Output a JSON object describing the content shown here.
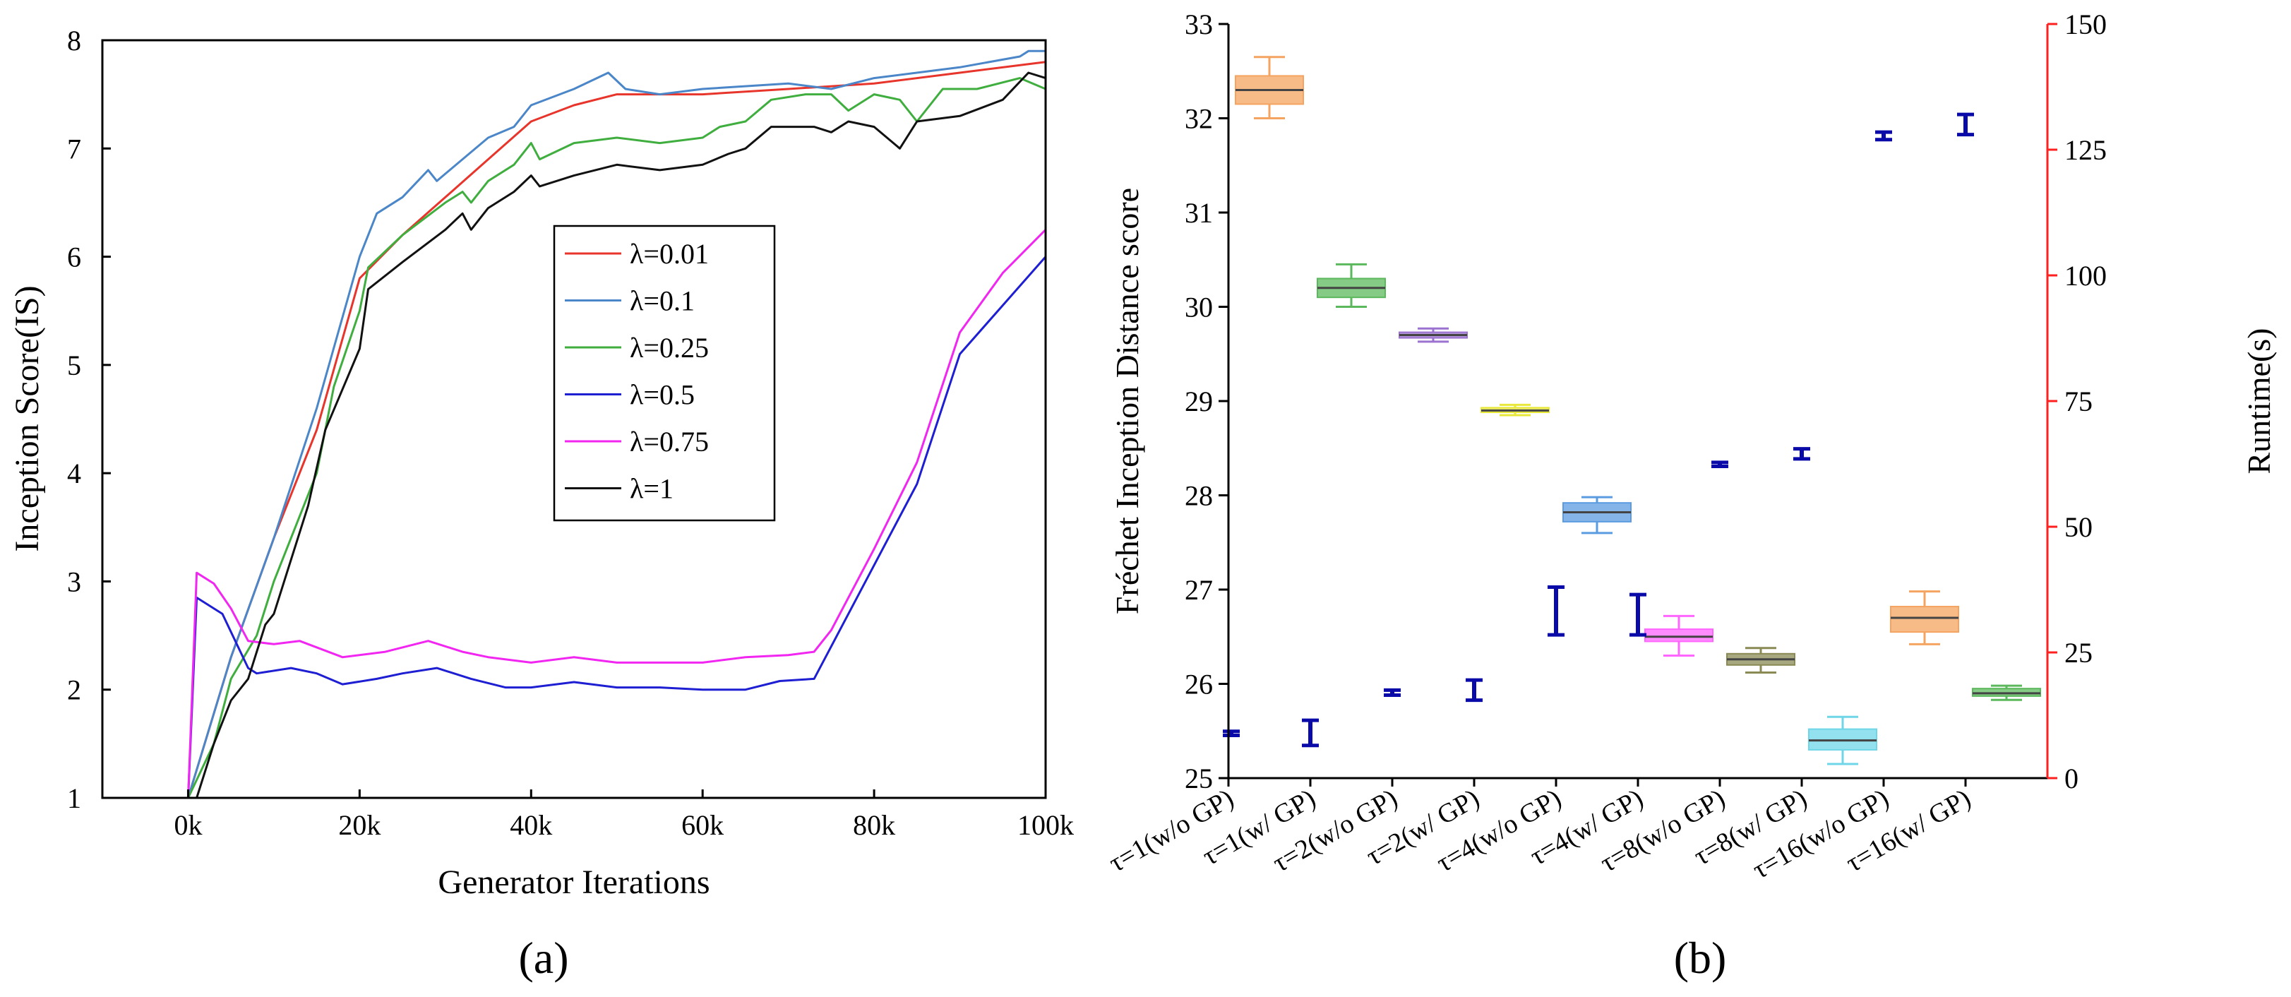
{
  "chart_data": [
    {
      "type": "line",
      "panel_label": "(a)",
      "xlabel": "Generator Iterations",
      "ylabel": "Inception Score(IS)",
      "xlim": [
        -10,
        100
      ],
      "ylim": [
        1,
        8
      ],
      "x_ticks": [
        0,
        20,
        40,
        60,
        80,
        100
      ],
      "x_tick_labels": [
        "0k",
        "20k",
        "40k",
        "60k",
        "80k",
        "100k"
      ],
      "y_ticks": [
        1,
        2,
        3,
        4,
        5,
        6,
        7,
        8
      ],
      "grid": false,
      "legend_position": "center-right",
      "series": [
        {
          "name": "λ=0.01",
          "color": "#e8352b",
          "points": [
            [
              0,
              1.0
            ],
            [
              5,
              2.3
            ],
            [
              10,
              3.4
            ],
            [
              15,
              4.4
            ],
            [
              20,
              5.8
            ],
            [
              25,
              6.2
            ],
            [
              30,
              6.55
            ],
            [
              35,
              6.9
            ],
            [
              40,
              7.25
            ],
            [
              45,
              7.4
            ],
            [
              50,
              7.5
            ],
            [
              60,
              7.5
            ],
            [
              70,
              7.55
            ],
            [
              80,
              7.6
            ],
            [
              90,
              7.7
            ],
            [
              100,
              7.8
            ]
          ]
        },
        {
          "name": "λ=0.1",
          "color": "#4a86c8",
          "points": [
            [
              0,
              1.0
            ],
            [
              5,
              2.3
            ],
            [
              10,
              3.4
            ],
            [
              15,
              4.6
            ],
            [
              20,
              6.0
            ],
            [
              22,
              6.4
            ],
            [
              25,
              6.55
            ],
            [
              28,
              6.8
            ],
            [
              29,
              6.7
            ],
            [
              32,
              6.9
            ],
            [
              35,
              7.1
            ],
            [
              38,
              7.2
            ],
            [
              40,
              7.4
            ],
            [
              45,
              7.55
            ],
            [
              49,
              7.7
            ],
            [
              51,
              7.55
            ],
            [
              55,
              7.5
            ],
            [
              60,
              7.55
            ],
            [
              70,
              7.6
            ],
            [
              75,
              7.55
            ],
            [
              80,
              7.65
            ],
            [
              90,
              7.75
            ],
            [
              97,
              7.85
            ],
            [
              98,
              7.9
            ],
            [
              100,
              7.9
            ]
          ]
        },
        {
          "name": "λ=0.25",
          "color": "#3fae3f",
          "points": [
            [
              0,
              1.0
            ],
            [
              3,
              1.5
            ],
            [
              5,
              2.1
            ],
            [
              8,
              2.5
            ],
            [
              10,
              3.0
            ],
            [
              15,
              4.0
            ],
            [
              17,
              4.8
            ],
            [
              20,
              5.5
            ],
            [
              21,
              5.9
            ],
            [
              25,
              6.2
            ],
            [
              30,
              6.5
            ],
            [
              32,
              6.6
            ],
            [
              33,
              6.5
            ],
            [
              35,
              6.7
            ],
            [
              38,
              6.85
            ],
            [
              40,
              7.05
            ],
            [
              41,
              6.9
            ],
            [
              45,
              7.05
            ],
            [
              50,
              7.1
            ],
            [
              55,
              7.05
            ],
            [
              60,
              7.1
            ],
            [
              62,
              7.2
            ],
            [
              65,
              7.25
            ],
            [
              68,
              7.45
            ],
            [
              72,
              7.5
            ],
            [
              75,
              7.5
            ],
            [
              77,
              7.35
            ],
            [
              80,
              7.5
            ],
            [
              83,
              7.45
            ],
            [
              85,
              7.25
            ],
            [
              88,
              7.55
            ],
            [
              92,
              7.55
            ],
            [
              97,
              7.65
            ],
            [
              100,
              7.55
            ]
          ]
        },
        {
          "name": "λ=0.5",
          "color": "#1e1ed2",
          "points": [
            [
              0,
              1.0
            ],
            [
              1,
              2.85
            ],
            [
              4,
              2.7
            ],
            [
              7,
              2.2
            ],
            [
              8,
              2.15
            ],
            [
              12,
              2.2
            ],
            [
              15,
              2.15
            ],
            [
              18,
              2.05
            ],
            [
              22,
              2.1
            ],
            [
              25,
              2.15
            ],
            [
              29,
              2.2
            ],
            [
              33,
              2.1
            ],
            [
              37,
              2.02
            ],
            [
              40,
              2.02
            ],
            [
              45,
              2.07
            ],
            [
              50,
              2.02
            ],
            [
              55,
              2.02
            ],
            [
              60,
              2.0
            ],
            [
              65,
              2.0
            ],
            [
              69,
              2.08
            ],
            [
              73,
              2.1
            ],
            [
              75,
              2.4
            ],
            [
              80,
              3.15
            ],
            [
              85,
              3.9
            ],
            [
              90,
              5.1
            ],
            [
              95,
              5.55
            ],
            [
              100,
              6.0
            ]
          ]
        },
        {
          "name": "λ=0.75",
          "color": "#f126f1",
          "points": [
            [
              0,
              1.0
            ],
            [
              1,
              3.08
            ],
            [
              3,
              2.98
            ],
            [
              5,
              2.75
            ],
            [
              7,
              2.45
            ],
            [
              10,
              2.42
            ],
            [
              13,
              2.45
            ],
            [
              18,
              2.3
            ],
            [
              23,
              2.35
            ],
            [
              28,
              2.45
            ],
            [
              32,
              2.35
            ],
            [
              35,
              2.3
            ],
            [
              40,
              2.25
            ],
            [
              45,
              2.3
            ],
            [
              50,
              2.25
            ],
            [
              55,
              2.25
            ],
            [
              60,
              2.25
            ],
            [
              65,
              2.3
            ],
            [
              70,
              2.32
            ],
            [
              73,
              2.35
            ],
            [
              75,
              2.55
            ],
            [
              80,
              3.3
            ],
            [
              85,
              4.1
            ],
            [
              90,
              5.3
            ],
            [
              95,
              5.85
            ],
            [
              100,
              6.25
            ]
          ]
        },
        {
          "name": "λ=1",
          "color": "#111111",
          "points": [
            [
              1,
              1.0
            ],
            [
              3,
              1.5
            ],
            [
              5,
              1.9
            ],
            [
              7,
              2.1
            ],
            [
              9,
              2.6
            ],
            [
              10,
              2.7
            ],
            [
              14,
              3.7
            ],
            [
              16,
              4.4
            ],
            [
              20,
              5.15
            ],
            [
              21,
              5.7
            ],
            [
              25,
              5.95
            ],
            [
              30,
              6.25
            ],
            [
              32,
              6.4
            ],
            [
              33,
              6.25
            ],
            [
              35,
              6.45
            ],
            [
              38,
              6.6
            ],
            [
              40,
              6.75
            ],
            [
              41,
              6.65
            ],
            [
              45,
              6.75
            ],
            [
              50,
              6.85
            ],
            [
              55,
              6.8
            ],
            [
              60,
              6.85
            ],
            [
              63,
              6.95
            ],
            [
              65,
              7.0
            ],
            [
              68,
              7.2
            ],
            [
              73,
              7.2
            ],
            [
              75,
              7.15
            ],
            [
              77,
              7.25
            ],
            [
              80,
              7.2
            ],
            [
              83,
              7.0
            ],
            [
              85,
              7.25
            ],
            [
              90,
              7.3
            ],
            [
              95,
              7.45
            ],
            [
              98,
              7.7
            ],
            [
              100,
              7.65
            ]
          ]
        }
      ]
    },
    {
      "type": "box",
      "panel_label": "(b)",
      "ylabel": "Fréchet Inception Distance score",
      "y2label": "Runtime(s)",
      "ylim": [
        25,
        33
      ],
      "y_ticks": [
        25,
        26,
        27,
        28,
        29,
        30,
        31,
        32,
        33
      ],
      "y2lim": [
        0,
        150
      ],
      "y2_ticks": [
        0,
        25,
        50,
        75,
        100,
        125,
        150
      ],
      "grid": false,
      "categories": [
        "τ=1(w/o GP)",
        "τ=1(w/ GP)",
        "τ=2(w/o GP)",
        "τ=2(w/ GP)",
        "τ=4(w/o GP)",
        "τ=4(w/ GP)",
        "τ=8(w/o GP)",
        "τ=8(w/ GP)",
        "τ=16(w/o GP)",
        "τ=16(w/ GP)"
      ],
      "fid_boxes": [
        {
          "pos": 0.5,
          "min": 32.0,
          "q1": 32.15,
          "median": 32.3,
          "q3": 32.45,
          "max": 32.65,
          "color": "#f4a460"
        },
        {
          "pos": 1.5,
          "min": 30.0,
          "q1": 30.1,
          "median": 30.2,
          "q3": 30.3,
          "max": 30.45,
          "color": "#5cb85c"
        },
        {
          "pos": 2.5,
          "min": 29.63,
          "q1": 29.67,
          "median": 29.7,
          "q3": 29.73,
          "max": 29.77,
          "color": "#9b72cf"
        },
        {
          "pos": 3.5,
          "min": 28.85,
          "q1": 28.88,
          "median": 28.9,
          "q3": 28.93,
          "max": 28.96,
          "color": "#e8e83a"
        },
        {
          "pos": 4.5,
          "min": 27.6,
          "q1": 27.72,
          "median": 27.82,
          "q3": 27.92,
          "max": 27.98,
          "color": "#5b9be0"
        },
        {
          "pos": 5.5,
          "min": 26.3,
          "q1": 26.45,
          "median": 26.5,
          "q3": 26.58,
          "max": 26.72,
          "color": "#ff66ff"
        },
        {
          "pos": 6.5,
          "min": 26.12,
          "q1": 26.2,
          "median": 26.26,
          "q3": 26.32,
          "max": 26.38,
          "color": "#8a8a55"
        },
        {
          "pos": 7.5,
          "min": 25.15,
          "q1": 25.3,
          "median": 25.4,
          "q3": 25.52,
          "max": 25.65,
          "color": "#6fd6e8"
        },
        {
          "pos": 8.5,
          "min": 26.42,
          "q1": 26.55,
          "median": 26.7,
          "q3": 26.82,
          "max": 26.98,
          "color": "#f4a460"
        },
        {
          "pos": 9.5,
          "min": 25.83,
          "q1": 25.87,
          "median": 25.9,
          "q3": 25.95,
          "max": 25.98,
          "color": "#5cb85c"
        }
      ],
      "runtime_errorbars": [
        {
          "pos": 0.0,
          "low": 8.5,
          "high": 9.3
        },
        {
          "pos": 1.0,
          "low": 6.5,
          "high": 11.5
        },
        {
          "pos": 2.0,
          "low": 16.5,
          "high": 17.5
        },
        {
          "pos": 3.0,
          "low": 15.5,
          "high": 19.5
        },
        {
          "pos": 4.0,
          "low": 28.5,
          "high": 38.0
        },
        {
          "pos": 5.0,
          "low": 28.5,
          "high": 36.5
        },
        {
          "pos": 6.0,
          "low": 62.0,
          "high": 62.8
        },
        {
          "pos": 7.0,
          "low": 63.5,
          "high": 65.5
        },
        {
          "pos": 8.0,
          "low": 127.0,
          "high": 128.5
        },
        {
          "pos": 9.0,
          "low": 128.0,
          "high": 132.0
        }
      ],
      "runtime_color": "#0a0aa8",
      "axis_color_right": "#ff2020"
    }
  ],
  "captions": {
    "a": "(a)",
    "b": "(b)"
  }
}
